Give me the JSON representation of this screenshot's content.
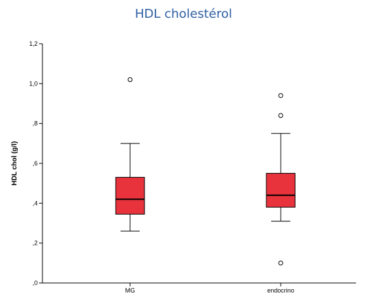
{
  "chart_data": {
    "type": "boxplot",
    "title": "HDL cholestérol",
    "ylabel": "HDL chol (g/l)",
    "xlabel": "",
    "ylim": [
      0,
      1.2
    ],
    "y_ticks": [
      0,
      0.2,
      0.4,
      0.6,
      0.8,
      1.0,
      1.2
    ],
    "y_tick_labels": [
      ",0",
      ",2",
      ",4",
      ",6",
      ",8",
      "1,0",
      "1,2"
    ],
    "categories": [
      "MG",
      "endocrino"
    ],
    "boxes": [
      {
        "category": "MG",
        "whisker_low": 0.26,
        "q1": 0.345,
        "median": 0.42,
        "q3": 0.53,
        "whisker_high": 0.7,
        "outliers": [
          1.02
        ]
      },
      {
        "category": "endocrino",
        "whisker_low": 0.31,
        "q1": 0.38,
        "median": 0.44,
        "q3": 0.55,
        "whisker_high": 0.75,
        "outliers": [
          0.94,
          0.84,
          0.1
        ]
      }
    ],
    "grid": false,
    "colors": {
      "box_fill": "#e8333d",
      "title": "#2f5fa3",
      "lines": "#000000"
    }
  }
}
